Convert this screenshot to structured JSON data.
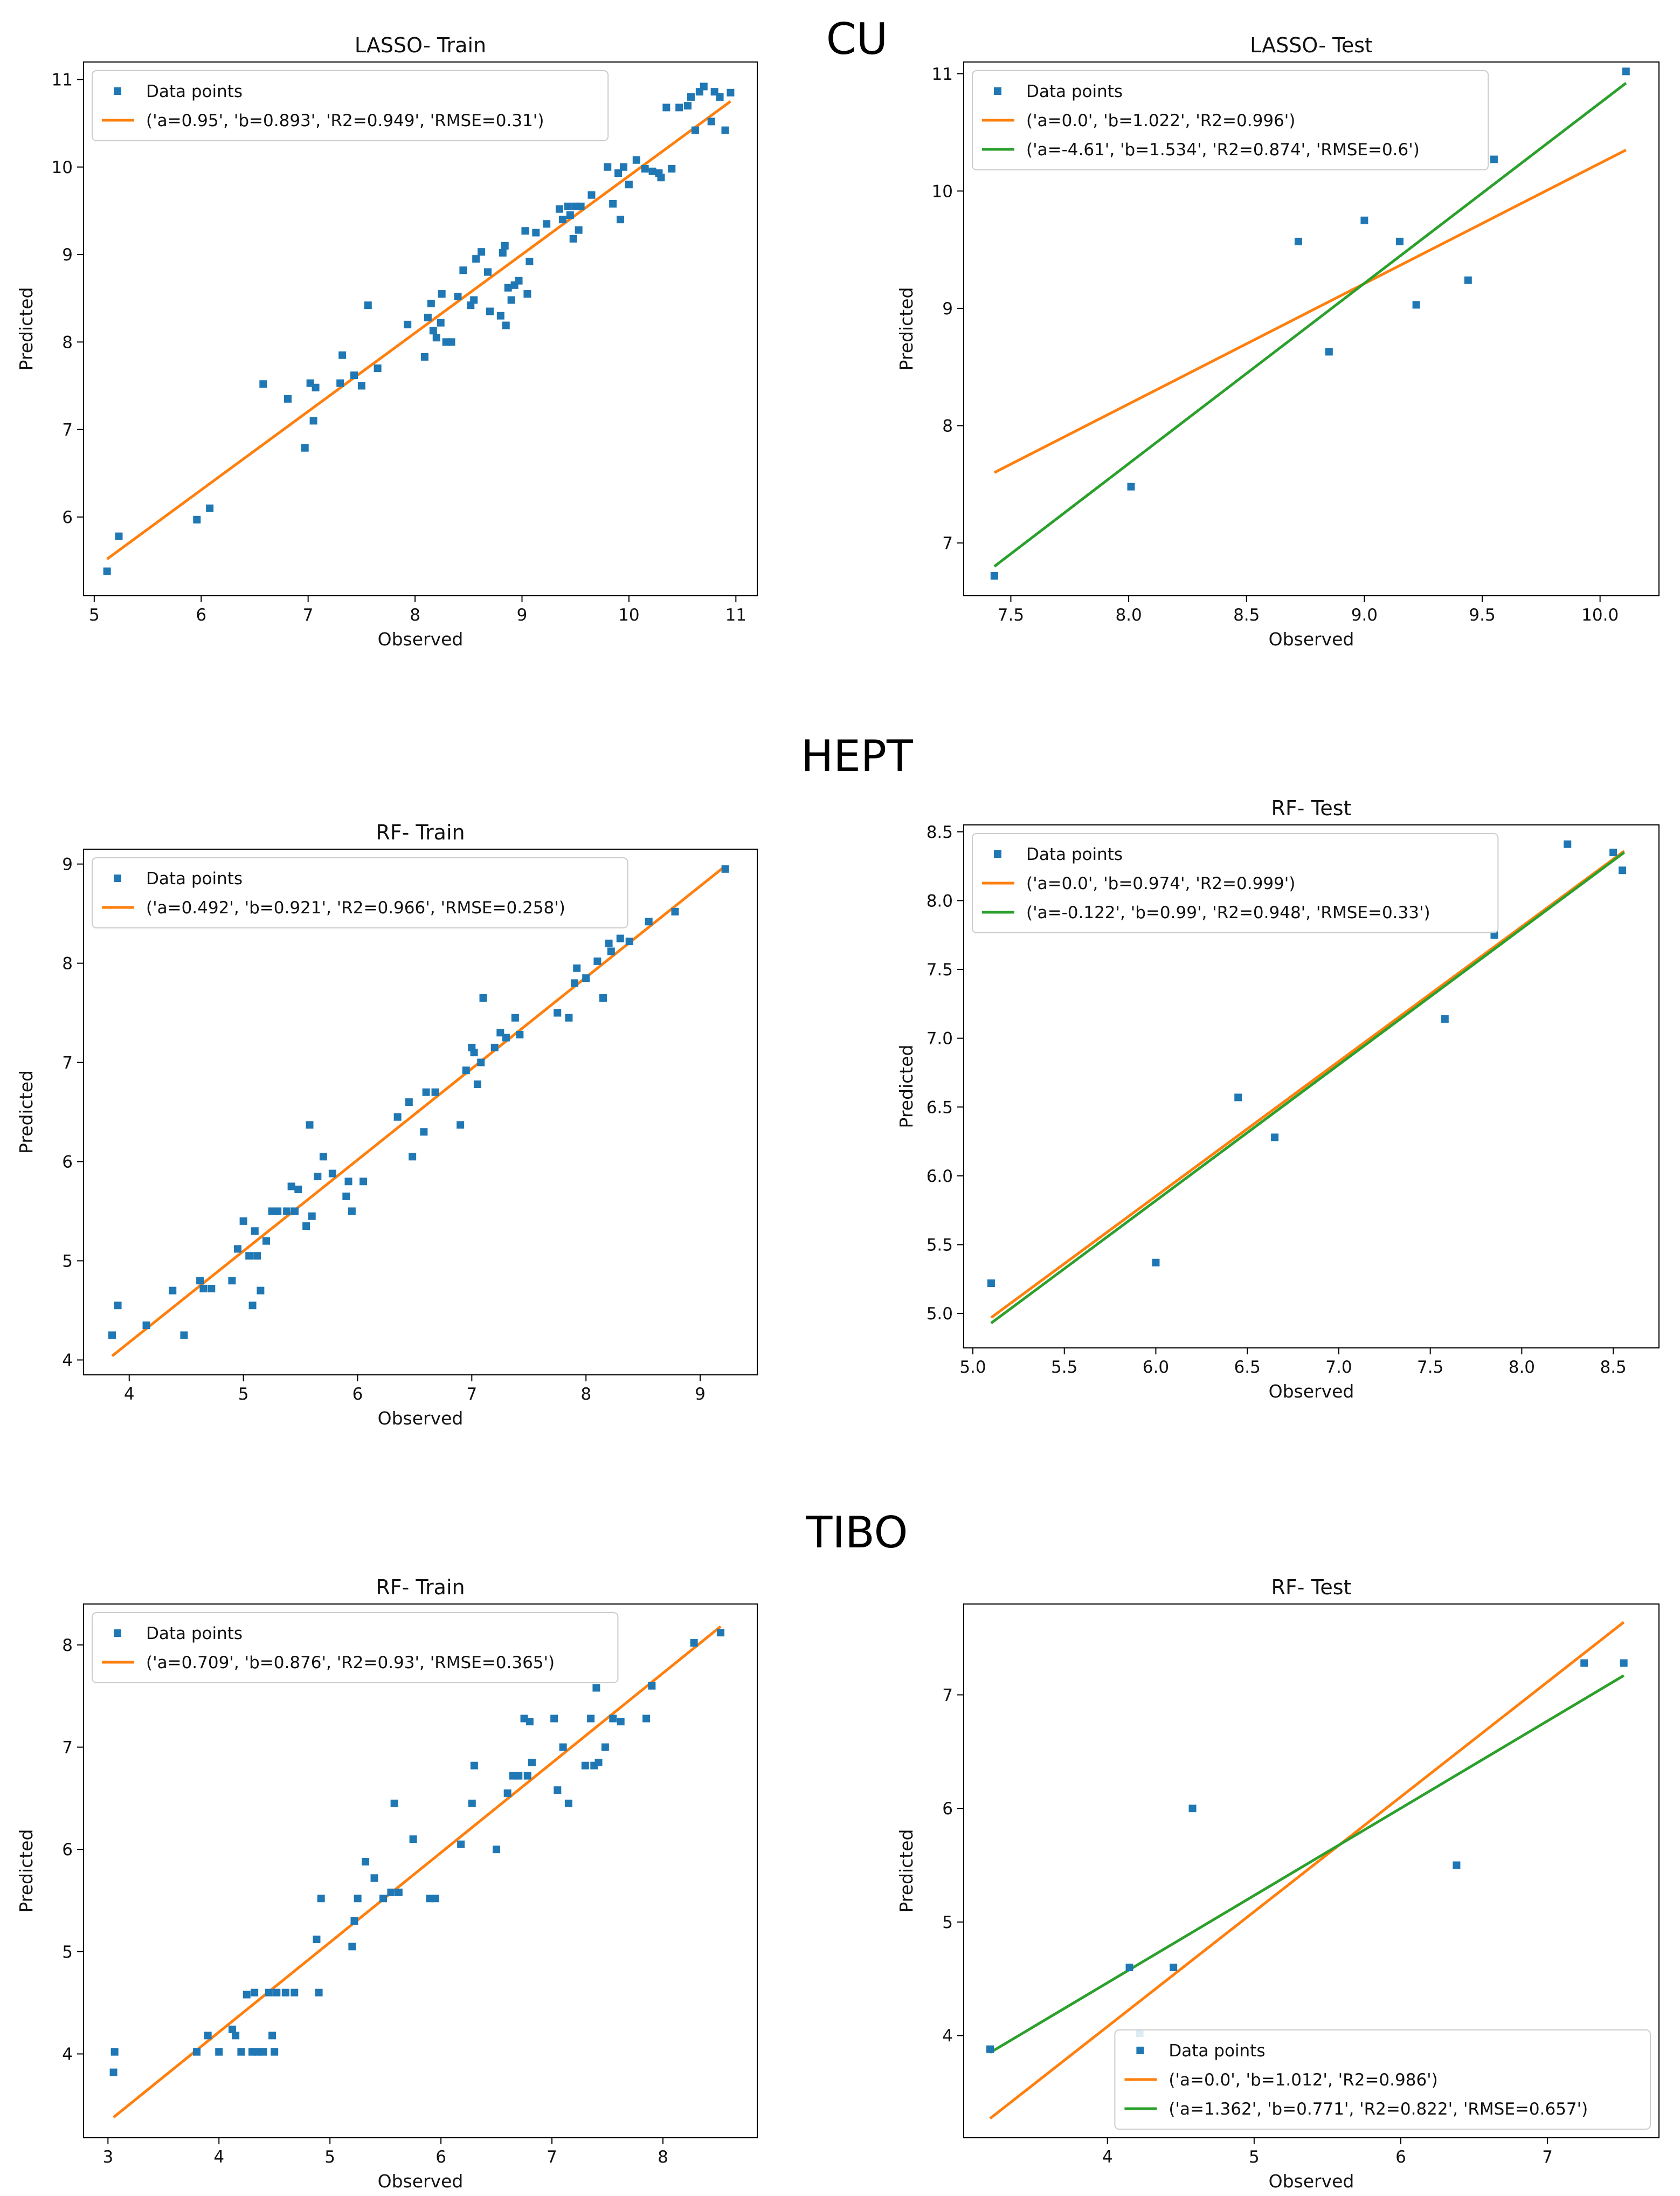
{
  "group_titles": [
    "CU",
    "HEPT",
    "TIBO"
  ],
  "colors": {
    "points": "#1f77b4",
    "orange_line": "#ff7f0e",
    "green_line": "#2ca02c",
    "frame": "#000000",
    "legend_border": "#cccccc"
  },
  "chart_data": [
    {
      "type": "scatter",
      "title": "LASSO- Train",
      "xlabel": "Observed",
      "ylabel": "Predicted",
      "xlim": [
        4.9,
        11.2
      ],
      "ylim": [
        5.1,
        11.2
      ],
      "xticks": [
        5,
        6,
        7,
        8,
        9,
        10,
        11
      ],
      "xtick_labels": [
        "5",
        "6",
        "7",
        "8",
        "9",
        "10",
        "11"
      ],
      "yticks": [
        6,
        7,
        8,
        9,
        10,
        11
      ],
      "ytick_labels": [
        "6",
        "7",
        "8",
        "9",
        "10",
        "11"
      ],
      "legend_position": "upper-left",
      "points_label": "Data points",
      "points": [
        [
          5.12,
          5.38
        ],
        [
          5.23,
          5.78
        ],
        [
          5.96,
          5.97
        ],
        [
          6.08,
          6.1
        ],
        [
          6.58,
          7.52
        ],
        [
          6.81,
          7.35
        ],
        [
          6.97,
          6.79
        ],
        [
          7.02,
          7.53
        ],
        [
          7.05,
          7.1
        ],
        [
          7.07,
          7.48
        ],
        [
          7.3,
          7.53
        ],
        [
          7.32,
          7.85
        ],
        [
          7.43,
          7.62
        ],
        [
          7.5,
          7.5
        ],
        [
          7.56,
          8.42
        ],
        [
          7.65,
          7.7
        ],
        [
          7.93,
          8.2
        ],
        [
          8.09,
          7.83
        ],
        [
          8.12,
          8.28
        ],
        [
          8.15,
          8.44
        ],
        [
          8.17,
          8.13
        ],
        [
          8.2,
          8.05
        ],
        [
          8.24,
          8.22
        ],
        [
          8.25,
          8.55
        ],
        [
          8.29,
          8.0
        ],
        [
          8.34,
          8.0
        ],
        [
          8.4,
          8.52
        ],
        [
          8.45,
          8.82
        ],
        [
          8.52,
          8.42
        ],
        [
          8.55,
          8.48
        ],
        [
          8.57,
          8.95
        ],
        [
          8.62,
          9.03
        ],
        [
          8.68,
          8.8
        ],
        [
          8.7,
          8.35
        ],
        [
          8.8,
          8.3
        ],
        [
          8.82,
          9.02
        ],
        [
          8.84,
          9.1
        ],
        [
          8.85,
          8.19
        ],
        [
          8.87,
          8.62
        ],
        [
          8.9,
          8.48
        ],
        [
          8.93,
          8.65
        ],
        [
          8.97,
          8.7
        ],
        [
          9.03,
          9.27
        ],
        [
          9.05,
          8.55
        ],
        [
          9.07,
          8.92
        ],
        [
          9.13,
          9.25
        ],
        [
          9.23,
          9.35
        ],
        [
          9.35,
          9.52
        ],
        [
          9.38,
          9.4
        ],
        [
          9.43,
          9.55
        ],
        [
          9.45,
          9.45
        ],
        [
          9.48,
          9.18
        ],
        [
          9.5,
          9.55
        ],
        [
          9.53,
          9.28
        ],
        [
          9.55,
          9.55
        ],
        [
          9.65,
          9.68
        ],
        [
          9.8,
          10.0
        ],
        [
          9.85,
          9.58
        ],
        [
          9.9,
          9.93
        ],
        [
          9.92,
          9.4
        ],
        [
          9.95,
          10.0
        ],
        [
          10.0,
          9.8
        ],
        [
          10.07,
          10.08
        ],
        [
          10.15,
          9.98
        ],
        [
          10.22,
          9.95
        ],
        [
          10.28,
          9.93
        ],
        [
          10.3,
          9.88
        ],
        [
          10.4,
          9.98
        ],
        [
          10.35,
          10.68
        ],
        [
          10.47,
          10.68
        ],
        [
          10.55,
          10.7
        ],
        [
          10.58,
          10.8
        ],
        [
          10.62,
          10.42
        ],
        [
          10.66,
          10.86
        ],
        [
          10.7,
          10.92
        ],
        [
          10.77,
          10.52
        ],
        [
          10.8,
          10.86
        ],
        [
          10.85,
          10.8
        ],
        [
          10.9,
          10.42
        ],
        [
          10.95,
          10.85
        ]
      ],
      "series": [
        {
          "name": "('a=0.95', 'b=0.893', 'R2=0.949', 'RMSE=0.31')",
          "color": "#ff7f0e",
          "x": [
            5.12,
            10.95
          ],
          "y": [
            5.52,
            10.75
          ]
        }
      ]
    },
    {
      "type": "scatter",
      "title": "LASSO- Test",
      "xlabel": "Observed",
      "ylabel": "Predicted",
      "xlim": [
        7.3,
        10.25
      ],
      "ylim": [
        6.55,
        11.1
      ],
      "xticks": [
        7.5,
        8.0,
        8.5,
        9.0,
        9.5,
        10.0
      ],
      "xtick_labels": [
        "7.5",
        "8.0",
        "8.5",
        "9.0",
        "9.5",
        "10.0"
      ],
      "yticks": [
        7,
        8,
        9,
        10,
        11
      ],
      "ytick_labels": [
        "7",
        "8",
        "9",
        "10",
        "11"
      ],
      "legend_position": "upper-left",
      "points_label": "Data points",
      "points": [
        [
          7.43,
          6.72
        ],
        [
          8.01,
          7.48
        ],
        [
          8.72,
          9.57
        ],
        [
          8.85,
          8.63
        ],
        [
          9.0,
          9.75
        ],
        [
          9.15,
          9.57
        ],
        [
          9.22,
          9.03
        ],
        [
          9.44,
          9.24
        ],
        [
          9.55,
          10.27
        ],
        [
          10.11,
          11.02
        ]
      ],
      "series": [
        {
          "name": "('a=0.0', 'b=1.022', 'R2=0.996')",
          "color": "#ff7f0e",
          "x": [
            7.43,
            10.11
          ],
          "y": [
            7.6,
            10.35
          ]
        },
        {
          "name": "('a=-4.61', 'b=1.534', 'R2=0.874', 'RMSE=0.6')",
          "color": "#2ca02c",
          "x": [
            7.43,
            10.11
          ],
          "y": [
            6.8,
            10.92
          ]
        }
      ]
    },
    {
      "type": "scatter",
      "title": "RF- Train",
      "xlabel": "Observed",
      "ylabel": "Predicted",
      "xlim": [
        3.6,
        9.5
      ],
      "ylim": [
        3.85,
        9.15
      ],
      "xticks": [
        4,
        5,
        6,
        7,
        8,
        9
      ],
      "xtick_labels": [
        "4",
        "5",
        "6",
        "7",
        "8",
        "9"
      ],
      "yticks": [
        4,
        5,
        6,
        7,
        8,
        9
      ],
      "ytick_labels": [
        "4",
        "5",
        "6",
        "7",
        "8",
        "9"
      ],
      "legend_position": "upper-left",
      "points_label": "Data points",
      "points": [
        [
          3.85,
          4.25
        ],
        [
          3.9,
          4.55
        ],
        [
          4.15,
          4.35
        ],
        [
          4.38,
          4.7
        ],
        [
          4.48,
          4.25
        ],
        [
          4.62,
          4.8
        ],
        [
          4.65,
          4.72
        ],
        [
          4.72,
          4.72
        ],
        [
          4.9,
          4.8
        ],
        [
          4.95,
          5.12
        ],
        [
          5.0,
          5.4
        ],
        [
          5.05,
          5.05
        ],
        [
          5.08,
          4.55
        ],
        [
          5.1,
          5.3
        ],
        [
          5.12,
          5.05
        ],
        [
          5.15,
          4.7
        ],
        [
          5.2,
          5.2
        ],
        [
          5.25,
          5.5
        ],
        [
          5.3,
          5.5
        ],
        [
          5.38,
          5.5
        ],
        [
          5.42,
          5.75
        ],
        [
          5.45,
          5.5
        ],
        [
          5.48,
          5.72
        ],
        [
          5.55,
          5.35
        ],
        [
          5.58,
          6.37
        ],
        [
          5.6,
          5.45
        ],
        [
          5.65,
          5.85
        ],
        [
          5.7,
          6.05
        ],
        [
          5.78,
          5.88
        ],
        [
          5.9,
          5.65
        ],
        [
          5.92,
          5.8
        ],
        [
          5.95,
          5.5
        ],
        [
          6.05,
          5.8
        ],
        [
          6.35,
          6.45
        ],
        [
          6.45,
          6.6
        ],
        [
          6.48,
          6.05
        ],
        [
          6.58,
          6.3
        ],
        [
          6.6,
          6.7
        ],
        [
          6.68,
          6.7
        ],
        [
          6.9,
          6.37
        ],
        [
          6.95,
          6.92
        ],
        [
          7.0,
          7.15
        ],
        [
          7.02,
          7.1
        ],
        [
          7.05,
          6.78
        ],
        [
          7.08,
          7.0
        ],
        [
          7.1,
          7.65
        ],
        [
          7.2,
          7.15
        ],
        [
          7.25,
          7.3
        ],
        [
          7.3,
          7.25
        ],
        [
          7.38,
          7.45
        ],
        [
          7.42,
          7.28
        ],
        [
          7.75,
          7.5
        ],
        [
          7.85,
          7.45
        ],
        [
          7.9,
          7.8
        ],
        [
          7.92,
          7.95
        ],
        [
          8.0,
          7.85
        ],
        [
          8.1,
          8.02
        ],
        [
          8.15,
          7.65
        ],
        [
          8.2,
          8.2
        ],
        [
          8.22,
          8.12
        ],
        [
          8.3,
          8.25
        ],
        [
          8.38,
          8.22
        ],
        [
          8.55,
          8.42
        ],
        [
          8.78,
          8.52
        ],
        [
          9.22,
          8.95
        ]
      ],
      "series": [
        {
          "name": "('a=0.492', 'b=0.921', 'R2=0.966', 'RMSE=0.258')",
          "color": "#ff7f0e",
          "x": [
            3.85,
            9.22
          ],
          "y": [
            4.04,
            8.98
          ]
        }
      ]
    },
    {
      "type": "scatter",
      "title": "RF- Test",
      "xlabel": "Observed",
      "ylabel": "Predicted",
      "xlim": [
        4.95,
        8.75
      ],
      "ylim": [
        4.75,
        8.55
      ],
      "xticks": [
        5.0,
        5.5,
        6.0,
        6.5,
        7.0,
        7.5,
        8.0,
        8.5
      ],
      "xtick_labels": [
        "5.0",
        "5.5",
        "6.0",
        "6.5",
        "7.0",
        "7.5",
        "8.0",
        "8.5"
      ],
      "yticks": [
        5.0,
        5.5,
        6.0,
        6.5,
        7.0,
        7.5,
        8.0,
        8.5
      ],
      "ytick_labels": [
        "5.0",
        "5.5",
        "6.0",
        "6.5",
        "7.0",
        "7.5",
        "8.0",
        "8.5"
      ],
      "legend_position": "upper-left",
      "points_label": "Data points",
      "points": [
        [
          5.1,
          5.22
        ],
        [
          6.0,
          5.37
        ],
        [
          6.45,
          6.57
        ],
        [
          6.65,
          6.28
        ],
        [
          7.58,
          7.14
        ],
        [
          7.85,
          7.75
        ],
        [
          8.25,
          8.41
        ],
        [
          8.5,
          8.35
        ],
        [
          8.55,
          8.22
        ]
      ],
      "series": [
        {
          "name": "('a=0.0', 'b=0.974', 'R2=0.999')",
          "color": "#ff7f0e",
          "x": [
            5.1,
            8.56
          ],
          "y": [
            4.97,
            8.36
          ]
        },
        {
          "name": "('a=-0.122', 'b=0.99', 'R2=0.948', 'RMSE=0.33')",
          "color": "#2ca02c",
          "x": [
            5.1,
            8.56
          ],
          "y": [
            4.93,
            8.35
          ]
        }
      ]
    },
    {
      "type": "scatter",
      "title": "RF- Train",
      "xlabel": "Observed",
      "ylabel": "Predicted",
      "xlim": [
        2.78,
        8.85
      ],
      "ylim": [
        3.18,
        8.4
      ],
      "xticks": [
        3,
        4,
        5,
        6,
        7,
        8
      ],
      "xtick_labels": [
        "3",
        "4",
        "5",
        "6",
        "7",
        "8"
      ],
      "yticks": [
        4,
        5,
        6,
        7,
        8
      ],
      "ytick_labels": [
        "4",
        "5",
        "6",
        "7",
        "8"
      ],
      "legend_position": "upper-left",
      "points_label": "Data points",
      "points": [
        [
          3.05,
          3.82
        ],
        [
          3.06,
          4.02
        ],
        [
          3.8,
          4.02
        ],
        [
          3.9,
          4.18
        ],
        [
          4.0,
          4.02
        ],
        [
          4.12,
          4.24
        ],
        [
          4.15,
          4.18
        ],
        [
          4.2,
          4.02
        ],
        [
          4.25,
          4.58
        ],
        [
          4.3,
          4.02
        ],
        [
          4.32,
          4.6
        ],
        [
          4.35,
          4.02
        ],
        [
          4.4,
          4.02
        ],
        [
          4.45,
          4.6
        ],
        [
          4.48,
          4.18
        ],
        [
          4.5,
          4.02
        ],
        [
          4.52,
          4.6
        ],
        [
          4.6,
          4.6
        ],
        [
          4.68,
          4.6
        ],
        [
          4.88,
          5.12
        ],
        [
          4.9,
          4.6
        ],
        [
          4.92,
          5.52
        ],
        [
          5.2,
          5.05
        ],
        [
          5.22,
          5.3
        ],
        [
          5.25,
          5.52
        ],
        [
          5.32,
          5.88
        ],
        [
          5.4,
          5.72
        ],
        [
          5.48,
          5.52
        ],
        [
          5.55,
          5.58
        ],
        [
          5.58,
          6.45
        ],
        [
          5.62,
          5.58
        ],
        [
          5.75,
          6.1
        ],
        [
          5.9,
          5.52
        ],
        [
          5.95,
          5.52
        ],
        [
          6.18,
          6.05
        ],
        [
          6.28,
          6.45
        ],
        [
          6.3,
          6.82
        ],
        [
          6.5,
          6.0
        ],
        [
          6.6,
          6.55
        ],
        [
          6.65,
          6.72
        ],
        [
          6.7,
          6.72
        ],
        [
          6.75,
          7.28
        ],
        [
          6.78,
          6.72
        ],
        [
          6.8,
          7.25
        ],
        [
          6.82,
          6.85
        ],
        [
          7.02,
          7.28
        ],
        [
          7.05,
          6.58
        ],
        [
          7.1,
          7.0
        ],
        [
          7.15,
          6.45
        ],
        [
          7.3,
          6.82
        ],
        [
          7.35,
          7.28
        ],
        [
          7.38,
          6.82
        ],
        [
          7.4,
          7.58
        ],
        [
          7.42,
          6.85
        ],
        [
          7.48,
          7.0
        ],
        [
          7.55,
          7.28
        ],
        [
          7.62,
          7.25
        ],
        [
          7.85,
          7.28
        ],
        [
          7.9,
          7.6
        ],
        [
          8.28,
          8.02
        ],
        [
          8.52,
          8.12
        ]
      ],
      "series": [
        {
          "name": "('a=0.709', 'b=0.876', 'R2=0.93', 'RMSE=0.365')",
          "color": "#ff7f0e",
          "x": [
            3.05,
            8.52
          ],
          "y": [
            3.38,
            8.18
          ]
        }
      ]
    },
    {
      "type": "scatter",
      "title": "RF- Test",
      "xlabel": "Observed",
      "ylabel": "Predicted",
      "xlim": [
        3.02,
        7.76
      ],
      "ylim": [
        3.1,
        7.8
      ],
      "xticks": [
        4,
        5,
        6,
        7
      ],
      "xtick_labels": [
        "4",
        "5",
        "6",
        "7"
      ],
      "yticks": [
        4,
        5,
        6,
        7
      ],
      "ytick_labels": [
        "4",
        "5",
        "6",
        "7"
      ],
      "legend_position": "lower-right",
      "points_label": "Data points",
      "points": [
        [
          3.2,
          3.88
        ],
        [
          4.15,
          4.6
        ],
        [
          4.22,
          4.02
        ],
        [
          4.45,
          4.6
        ],
        [
          4.58,
          6.0
        ],
        [
          6.38,
          5.5
        ],
        [
          7.25,
          7.28
        ],
        [
          7.52,
          7.28
        ]
      ],
      "series": [
        {
          "name": "('a=0.0', 'b=1.012', 'R2=0.986')",
          "color": "#ff7f0e",
          "x": [
            3.2,
            7.52
          ],
          "y": [
            3.27,
            7.64
          ]
        },
        {
          "name": "('a=1.362', 'b=0.771', 'R2=0.822', 'RMSE=0.657')",
          "color": "#2ca02c",
          "x": [
            3.2,
            7.52
          ],
          "y": [
            3.85,
            7.17
          ]
        }
      ]
    }
  ]
}
